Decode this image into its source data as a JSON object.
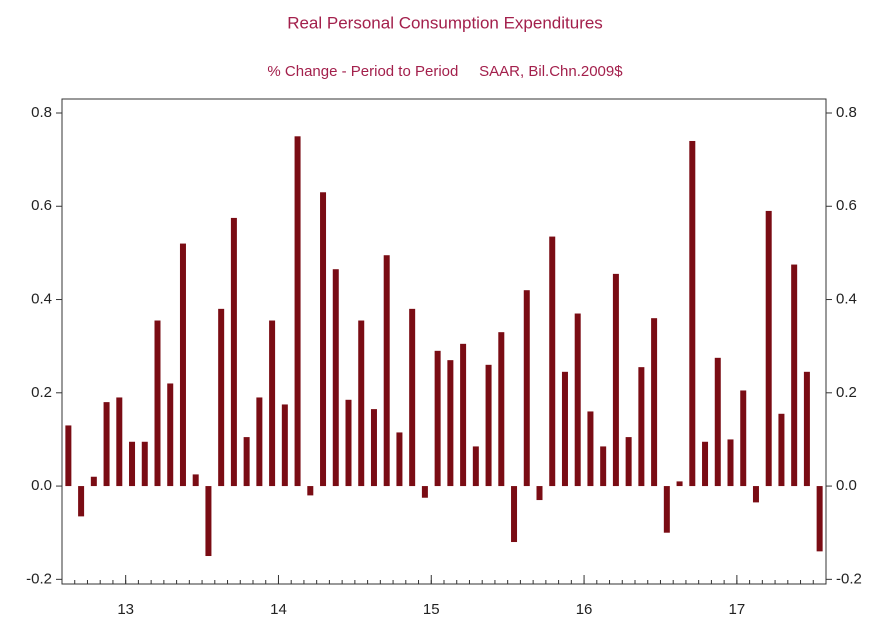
{
  "chart_data": {
    "type": "bar",
    "title": "Real Personal Consumption Expenditures",
    "subtitle": "% Change - Period to Period     SAAR, Bil.Chn.2009$",
    "categories": [
      null,
      null,
      null,
      null,
      null,
      "13",
      null,
      null,
      null,
      null,
      null,
      null,
      null,
      null,
      null,
      null,
      null,
      "14",
      null,
      null,
      null,
      null,
      null,
      null,
      null,
      null,
      null,
      null,
      null,
      "15",
      null,
      null,
      null,
      null,
      null,
      null,
      null,
      null,
      null,
      null,
      null,
      "16",
      null,
      null,
      null,
      null,
      null,
      null,
      null,
      null,
      null,
      null,
      null,
      "17",
      null,
      null,
      null,
      null,
      null,
      null
    ],
    "values": [
      0.13,
      -0.065,
      0.02,
      0.18,
      0.19,
      0.095,
      0.095,
      0.355,
      0.22,
      0.52,
      0.025,
      -0.15,
      0.38,
      0.575,
      0.105,
      0.19,
      0.355,
      0.175,
      0.75,
      -0.02,
      0.63,
      0.465,
      0.185,
      0.355,
      0.165,
      0.495,
      0.115,
      0.38,
      -0.025,
      0.29,
      0.27,
      0.305,
      0.085,
      0.26,
      0.33,
      -0.12,
      0.42,
      -0.03,
      0.535,
      0.245,
      0.37,
      0.16,
      0.085,
      0.455,
      0.105,
      0.255,
      0.36,
      -0.1,
      0.01,
      0.74,
      0.095,
      0.275,
      0.1,
      0.205,
      -0.035,
      0.59,
      0.155,
      0.475,
      0.245,
      -0.14
    ],
    "color": "#7a0c14",
    "ylim": [
      -0.21,
      0.83
    ],
    "yticks": [
      -0.2,
      0.2,
      {
        "value": 0,
        "label": "0.0"
      },
      0.4,
      0.6,
      0.8
    ],
    "grid": false
  }
}
